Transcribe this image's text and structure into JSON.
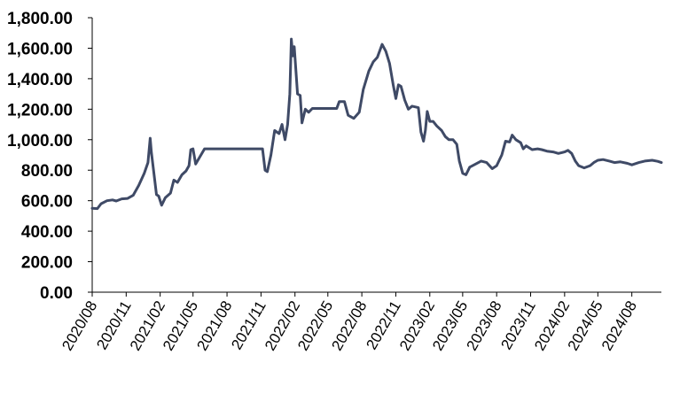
{
  "chart_data": {
    "type": "line",
    "title": "",
    "xlabel": "",
    "ylabel": "",
    "ylim": [
      0,
      1800
    ],
    "xlim": [
      "2020-08-01",
      "2024-10-20"
    ],
    "grid": false,
    "legend": "none",
    "y_ticks": [
      "0.00",
      "200.00",
      "400.00",
      "600.00",
      "800.00",
      "1,000.00",
      "1,200.00",
      "1,400.00",
      "1,600.00",
      "1,800.00"
    ],
    "x_ticks": [
      {
        "label": "2020/08",
        "date": "2020-08-01"
      },
      {
        "label": "2020/11",
        "date": "2020-11-01"
      },
      {
        "label": "2021/02",
        "date": "2021-02-01"
      },
      {
        "label": "2021/05",
        "date": "2021-05-01"
      },
      {
        "label": "2021/08",
        "date": "2021-08-01"
      },
      {
        "label": "2021/11",
        "date": "2021-11-01"
      },
      {
        "label": "2022/02",
        "date": "2022-02-01"
      },
      {
        "label": "2022/05",
        "date": "2022-05-01"
      },
      {
        "label": "2022/08",
        "date": "2022-08-01"
      },
      {
        "label": "2022/11",
        "date": "2022-11-01"
      },
      {
        "label": "2023/02",
        "date": "2023-02-01"
      },
      {
        "label": "2023/05",
        "date": "2023-05-01"
      },
      {
        "label": "2023/08",
        "date": "2023-08-01"
      },
      {
        "label": "2023/11",
        "date": "2023-11-01"
      },
      {
        "label": "2024/02",
        "date": "2024-02-01"
      },
      {
        "label": "2024/05",
        "date": "2024-05-01"
      },
      {
        "label": "2024/08",
        "date": "2024-08-01"
      }
    ],
    "series": [
      {
        "color": "#3f4a66",
        "points": [
          [
            "2020-08-01",
            550
          ],
          [
            "2020-08-15",
            548
          ],
          [
            "2020-08-25",
            580
          ],
          [
            "2020-09-10",
            600
          ],
          [
            "2020-09-25",
            605
          ],
          [
            "2020-10-05",
            598
          ],
          [
            "2020-10-20",
            612
          ],
          [
            "2020-11-05",
            615
          ],
          [
            "2020-11-20",
            635
          ],
          [
            "2020-12-05",
            700
          ],
          [
            "2020-12-20",
            780
          ],
          [
            "2020-12-30",
            850
          ],
          [
            "2021-01-05",
            1010
          ],
          [
            "2021-01-08",
            920
          ],
          [
            "2021-01-15",
            780
          ],
          [
            "2021-01-22",
            640
          ],
          [
            "2021-01-28",
            630
          ],
          [
            "2021-02-05",
            570
          ],
          [
            "2021-02-15",
            620
          ],
          [
            "2021-03-01",
            650
          ],
          [
            "2021-03-10",
            735
          ],
          [
            "2021-03-20",
            720
          ],
          [
            "2021-04-01",
            770
          ],
          [
            "2021-04-12",
            795
          ],
          [
            "2021-04-20",
            830
          ],
          [
            "2021-04-25",
            935
          ],
          [
            "2021-05-01",
            940
          ],
          [
            "2021-05-08",
            840
          ],
          [
            "2021-06-01",
            940
          ],
          [
            "2021-07-01",
            940
          ],
          [
            "2021-08-01",
            940
          ],
          [
            "2021-09-01",
            940
          ],
          [
            "2021-10-01",
            940
          ],
          [
            "2021-11-05",
            940
          ],
          [
            "2021-11-12",
            800
          ],
          [
            "2021-11-18",
            790
          ],
          [
            "2021-11-28",
            900
          ],
          [
            "2021-12-08",
            1060
          ],
          [
            "2021-12-20",
            1040
          ],
          [
            "2021-12-28",
            1100
          ],
          [
            "2022-01-05",
            1000
          ],
          [
            "2022-01-12",
            1100
          ],
          [
            "2022-01-18",
            1300
          ],
          [
            "2022-01-22",
            1660
          ],
          [
            "2022-01-26",
            1550
          ],
          [
            "2022-01-30",
            1610
          ],
          [
            "2022-02-08",
            1300
          ],
          [
            "2022-02-15",
            1290
          ],
          [
            "2022-02-20",
            1110
          ],
          [
            "2022-03-01",
            1200
          ],
          [
            "2022-03-10",
            1180
          ],
          [
            "2022-03-20",
            1205
          ],
          [
            "2022-04-15",
            1205
          ],
          [
            "2022-05-25",
            1205
          ],
          [
            "2022-06-01",
            1250
          ],
          [
            "2022-06-15",
            1250
          ],
          [
            "2022-06-25",
            1160
          ],
          [
            "2022-07-10",
            1140
          ],
          [
            "2022-07-25",
            1180
          ],
          [
            "2022-08-05",
            1330
          ],
          [
            "2022-08-20",
            1450
          ],
          [
            "2022-09-01",
            1510
          ],
          [
            "2022-09-12",
            1540
          ],
          [
            "2022-09-25",
            1625
          ],
          [
            "2022-10-05",
            1580
          ],
          [
            "2022-10-15",
            1500
          ],
          [
            "2022-10-25",
            1360
          ],
          [
            "2022-11-01",
            1270
          ],
          [
            "2022-11-08",
            1360
          ],
          [
            "2022-11-15",
            1350
          ],
          [
            "2022-11-25",
            1260
          ],
          [
            "2022-12-05",
            1200
          ],
          [
            "2022-12-15",
            1220
          ],
          [
            "2023-01-01",
            1210
          ],
          [
            "2023-01-08",
            1050
          ],
          [
            "2023-01-15",
            990
          ],
          [
            "2023-01-20",
            1060
          ],
          [
            "2023-01-25",
            1185
          ],
          [
            "2023-02-01",
            1120
          ],
          [
            "2023-02-10",
            1120
          ],
          [
            "2023-02-20",
            1090
          ],
          [
            "2023-03-05",
            1060
          ],
          [
            "2023-03-15",
            1020
          ],
          [
            "2023-03-25",
            1000
          ],
          [
            "2023-04-05",
            1000
          ],
          [
            "2023-04-15",
            970
          ],
          [
            "2023-04-22",
            860
          ],
          [
            "2023-05-01",
            780
          ],
          [
            "2023-05-10",
            770
          ],
          [
            "2023-05-20",
            820
          ],
          [
            "2023-06-05",
            840
          ],
          [
            "2023-06-20",
            860
          ],
          [
            "2023-07-05",
            850
          ],
          [
            "2023-07-20",
            810
          ],
          [
            "2023-08-01",
            830
          ],
          [
            "2023-08-15",
            900
          ],
          [
            "2023-08-25",
            990
          ],
          [
            "2023-09-05",
            985
          ],
          [
            "2023-09-12",
            1030
          ],
          [
            "2023-09-22",
            1000
          ],
          [
            "2023-10-05",
            980
          ],
          [
            "2023-10-12",
            940
          ],
          [
            "2023-10-20",
            960
          ],
          [
            "2023-11-05",
            935
          ],
          [
            "2023-11-20",
            940
          ],
          [
            "2023-12-01",
            935
          ],
          [
            "2023-12-15",
            925
          ],
          [
            "2024-01-01",
            920
          ],
          [
            "2024-01-15",
            910
          ],
          [
            "2024-02-01",
            920
          ],
          [
            "2024-02-10",
            930
          ],
          [
            "2024-02-20",
            910
          ],
          [
            "2024-03-01",
            860
          ],
          [
            "2024-03-10",
            830
          ],
          [
            "2024-03-25",
            815
          ],
          [
            "2024-04-10",
            830
          ],
          [
            "2024-04-20",
            850
          ],
          [
            "2024-05-01",
            865
          ],
          [
            "2024-05-15",
            870
          ],
          [
            "2024-06-01",
            860
          ],
          [
            "2024-06-15",
            850
          ],
          [
            "2024-07-01",
            855
          ],
          [
            "2024-07-20",
            845
          ],
          [
            "2024-08-01",
            835
          ],
          [
            "2024-08-20",
            850
          ],
          [
            "2024-09-05",
            860
          ],
          [
            "2024-09-25",
            865
          ],
          [
            "2024-10-10",
            858
          ],
          [
            "2024-10-20",
            850
          ]
        ]
      }
    ]
  }
}
